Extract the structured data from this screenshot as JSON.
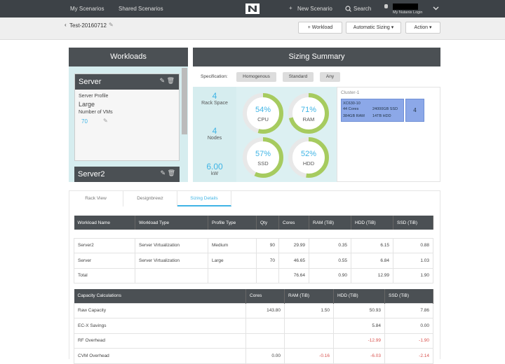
{
  "nav": {
    "links": [
      "My Scenarios",
      "Shared Scenarios"
    ],
    "new_scenario": "New Scenario",
    "search": "Search",
    "login": "My Nutanix Login"
  },
  "toolbar": {
    "scenario": "Test-20160712",
    "add_workload": "Workload",
    "sizing_mode": "Automatic Sizing",
    "action": "Action"
  },
  "workloads": {
    "title": "Workloads",
    "cards": [
      {
        "name": "Server",
        "profile_label": "Server Profile",
        "profile": "Large",
        "vms_label": "Number of VMs",
        "vms": "70"
      },
      {
        "name": "Server2"
      }
    ]
  },
  "sizing": {
    "title": "Sizing Summary",
    "spec_label": "Specification:",
    "spec_options": [
      "Homogenous",
      "Standard",
      "Any"
    ],
    "stats": [
      {
        "value": "4",
        "label": "Rack Space"
      },
      {
        "value": "4",
        "label": "Nodes"
      },
      {
        "value": "6.00",
        "label": "kW"
      }
    ],
    "gauges": [
      {
        "name": "CPU",
        "value": 54,
        "label": "54%"
      },
      {
        "name": "RAM",
        "value": 71,
        "label": "71%"
      },
      {
        "name": "SSD",
        "value": 57,
        "label": "57%"
      },
      {
        "name": "HDD",
        "value": 52,
        "label": "52%"
      }
    ],
    "cluster": {
      "name": "Cluster-1",
      "model": "XC630-10",
      "specs": [
        "44 Cores",
        "24000GB SSD",
        "384GB RAM",
        "14TB HDD"
      ],
      "count": "4"
    }
  },
  "tabs": {
    "items": [
      "Rack View",
      "Designbrewz",
      "Sizing Details"
    ],
    "active": 2
  },
  "workload_table": {
    "headers": [
      "Workload Name",
      "Workload Type",
      "Profile Type",
      "Qty",
      "Cores",
      "RAM (TiB)",
      "HDD (TiB)",
      "SSD (TiB)"
    ],
    "rows": [
      [
        "Server2",
        "Server Virtualization",
        "Medium",
        "90",
        "29.99",
        "0.35",
        "6.15",
        "0.88"
      ],
      [
        "Server",
        "Server Virtualization",
        "Large",
        "70",
        "46.65",
        "0.55",
        "6.84",
        "1.03"
      ],
      [
        "Total",
        null,
        null,
        null,
        "76.64",
        "0.90",
        "12.99",
        "1.90"
      ]
    ]
  },
  "capacity_table": {
    "headers": [
      "Capacity Calculations",
      "Cores",
      "RAM (TiB)",
      "HDD (TiB)",
      "SSD (TiB)"
    ],
    "rows": [
      [
        "Raw Capacity",
        "143.80",
        "1.50",
        "50.93",
        "7.86"
      ],
      [
        "EC-X Savings",
        null,
        null,
        "5.84",
        "0.00"
      ],
      [
        "RF Overhead",
        null,
        null,
        "-12.99",
        "-1.90"
      ],
      [
        "CVM Overhead",
        "0.00",
        "-0.16",
        "-6.03",
        "-2.14"
      ]
    ]
  }
}
